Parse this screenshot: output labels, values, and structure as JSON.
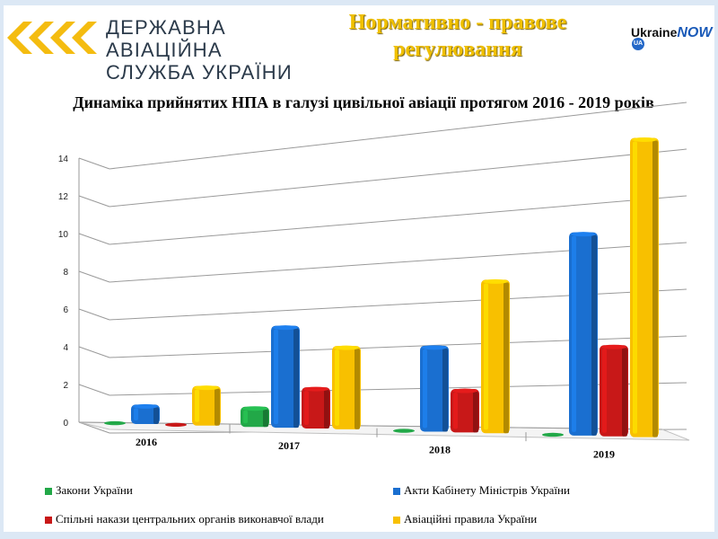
{
  "header": {
    "agency_line1": "ДЕРЖАВНА АВІАЦІЙНА",
    "agency_line2": "СЛУЖБА УКРАЇНИ",
    "page_title": "Нормативно - правове регулювання",
    "brand_ukraine": "Ukraine",
    "brand_now": "NOW",
    "brand_ua": "UA"
  },
  "colors": {
    "page_title": "#f0c000",
    "green": "#22a848",
    "blue": "#1a6fd0",
    "red": "#c81818",
    "yellow": "#f8c000",
    "grid": "#9a9a9a"
  },
  "chart_data": {
    "type": "bar",
    "title": "Динаміка прийнятих НПА в галузі цивільної авіації протягом 2016 - 2019 років",
    "categories": [
      "2016",
      "2017",
      "2018",
      "2019"
    ],
    "ylim": [
      0,
      14
    ],
    "yticks": [
      0,
      2,
      4,
      6,
      8,
      10,
      12,
      14
    ],
    "grid": true,
    "legend_position": "bottom",
    "series": [
      {
        "name": "Закони України",
        "color": "#22a848",
        "values": [
          0,
          1,
          0,
          0
        ]
      },
      {
        "name": "Акти Кабінету Міністрів України",
        "color": "#1a6fd0",
        "values": [
          1,
          5,
          4,
          9
        ]
      },
      {
        "name": "Спільні накази центральних органів виконавчої влади",
        "color": "#c81818",
        "values": [
          0,
          2,
          2,
          4
        ]
      },
      {
        "name": "Авіаційні правила України",
        "color": "#f8c000",
        "values": [
          2,
          4,
          7,
          13
        ]
      }
    ]
  }
}
